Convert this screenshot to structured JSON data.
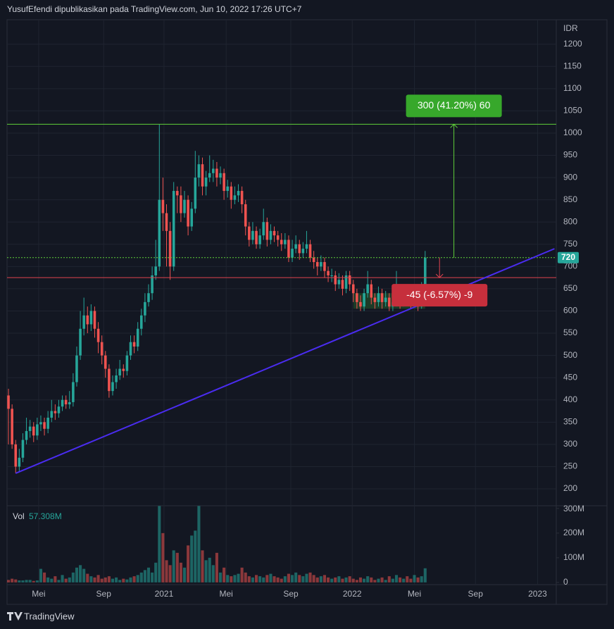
{
  "header": "YusufEfendi dipublikasikan pada TradingView.com, Jun 10, 2022 17:26 UTC+7",
  "footer": "TradingView",
  "chart_data": {
    "type": "candlestick",
    "y_unit": "IDR",
    "up_color": "#26a69a",
    "down_color": "#ef5350",
    "xlim": [
      -0.4,
      152.5
    ],
    "xticks": [
      {
        "value": 8.4,
        "label": "Mei"
      },
      {
        "value": 26.5,
        "label": "Sep"
      },
      {
        "value": 43.3,
        "label": "2021"
      },
      {
        "value": 60.6,
        "label": "Mei"
      },
      {
        "value": 78.6,
        "label": "Sep"
      },
      {
        "value": 95.7,
        "label": "2022"
      },
      {
        "value": 113,
        "label": "Mei"
      },
      {
        "value": 130,
        "label": "Sep"
      },
      {
        "value": 147.3,
        "label": "2023"
      }
    ],
    "ylim": [
      162,
      1255
    ],
    "yticks": [
      200,
      250,
      300,
      350,
      400,
      450,
      500,
      550,
      600,
      650,
      700,
      750,
      800,
      850,
      900,
      950,
      1000,
      1050,
      1100,
      1150,
      1200
    ],
    "open": [
      410,
      380,
      300,
      250,
      270,
      310,
      330,
      340,
      320,
      345,
      350,
      335,
      360,
      375,
      370,
      385,
      400,
      390,
      395,
      440,
      500,
      560,
      590,
      570,
      600,
      560,
      530,
      500,
      470,
      420,
      440,
      455,
      470,
      465,
      500,
      530,
      520,
      560,
      590,
      620,
      640,
      680,
      700,
      850,
      820,
      780,
      700,
      870,
      860,
      820,
      850,
      790,
      830,
      900,
      930,
      880,
      900,
      910,
      920,
      900,
      910,
      870,
      880,
      850,
      860,
      870,
      840,
      790,
      760,
      780,
      750,
      770,
      800,
      760,
      780,
      770,
      760,
      750,
      760,
      720,
      740,
      750,
      730,
      740,
      750,
      720,
      710,
      700,
      710,
      690,
      680,
      680,
      660,
      670,
      650,
      680,
      660,
      640,
      620,
      610,
      640,
      660,
      630,
      620,
      640,
      620,
      630,
      610,
      620,
      630,
      620,
      640,
      630,
      620,
      630,
      610,
      650
    ],
    "high": [
      425,
      390,
      310,
      290,
      325,
      360,
      355,
      350,
      360,
      365,
      360,
      375,
      400,
      390,
      400,
      410,
      410,
      420,
      460,
      520,
      600,
      630,
      610,
      615,
      610,
      575,
      545,
      510,
      480,
      455,
      470,
      490,
      480,
      510,
      545,
      545,
      575,
      605,
      640,
      660,
      700,
      760,
      1020,
      900,
      840,
      800,
      890,
      880,
      880,
      870,
      860,
      845,
      960,
      950,
      945,
      915,
      950,
      940,
      935,
      925,
      920,
      895,
      890,
      880,
      885,
      880,
      850,
      800,
      800,
      790,
      785,
      830,
      810,
      795,
      790,
      780,
      775,
      775,
      770,
      760,
      770,
      760,
      755,
      780,
      760,
      735,
      720,
      725,
      720,
      700,
      695,
      690,
      685,
      680,
      690,
      690,
      670,
      650,
      635,
      650,
      690,
      670,
      640,
      655,
      650,
      645,
      640,
      635,
      690,
      640,
      660,
      650,
      640,
      645,
      640,
      665,
      735
    ],
    "low": [
      300,
      290,
      235,
      240,
      260,
      300,
      315,
      305,
      310,
      330,
      320,
      325,
      350,
      355,
      360,
      375,
      380,
      380,
      385,
      430,
      490,
      545,
      550,
      555,
      540,
      505,
      480,
      450,
      405,
      410,
      425,
      445,
      450,
      455,
      490,
      505,
      510,
      545,
      575,
      610,
      625,
      670,
      690,
      780,
      700,
      670,
      690,
      820,
      800,
      810,
      770,
      780,
      820,
      880,
      860,
      860,
      890,
      890,
      880,
      885,
      850,
      855,
      830,
      840,
      845,
      820,
      770,
      745,
      750,
      740,
      740,
      760,
      745,
      750,
      755,
      745,
      735,
      740,
      710,
      710,
      730,
      715,
      720,
      730,
      710,
      695,
      680,
      690,
      675,
      665,
      665,
      645,
      650,
      635,
      640,
      645,
      620,
      605,
      600,
      600,
      630,
      615,
      605,
      610,
      605,
      610,
      600,
      600,
      610,
      605,
      610,
      615,
      605,
      610,
      600,
      605,
      640
    ],
    "close": [
      380,
      300,
      250,
      270,
      310,
      330,
      340,
      320,
      345,
      350,
      335,
      360,
      375,
      370,
      385,
      400,
      390,
      395,
      440,
      500,
      560,
      590,
      570,
      600,
      560,
      530,
      500,
      470,
      420,
      440,
      455,
      470,
      465,
      500,
      530,
      520,
      560,
      590,
      620,
      640,
      680,
      700,
      850,
      820,
      780,
      700,
      870,
      860,
      820,
      850,
      790,
      830,
      900,
      930,
      880,
      900,
      910,
      920,
      900,
      910,
      870,
      880,
      850,
      860,
      870,
      840,
      790,
      760,
      780,
      750,
      770,
      800,
      760,
      780,
      770,
      760,
      750,
      760,
      720,
      740,
      750,
      730,
      740,
      750,
      720,
      710,
      700,
      710,
      690,
      680,
      680,
      660,
      670,
      650,
      680,
      660,
      640,
      620,
      610,
      640,
      660,
      630,
      620,
      640,
      620,
      630,
      610,
      620,
      630,
      620,
      640,
      630,
      620,
      630,
      610,
      650,
      720
    ],
    "volume_title": "Vol",
    "volume_last_label": "57.308M",
    "volume": [
      10,
      15,
      12,
      8,
      8,
      10,
      10,
      6,
      8,
      55,
      40,
      20,
      15,
      25,
      10,
      30,
      15,
      20,
      40,
      60,
      70,
      55,
      35,
      25,
      20,
      30,
      15,
      20,
      25,
      15,
      20,
      10,
      15,
      12,
      20,
      25,
      30,
      40,
      50,
      60,
      40,
      80,
      310,
      200,
      90,
      70,
      130,
      120,
      80,
      60,
      150,
      190,
      210,
      310,
      130,
      90,
      100,
      70,
      120,
      40,
      60,
      30,
      25,
      30,
      35,
      60,
      40,
      25,
      20,
      30,
      25,
      20,
      30,
      35,
      25,
      20,
      15,
      25,
      35,
      30,
      40,
      30,
      25,
      35,
      40,
      30,
      20,
      25,
      30,
      20,
      15,
      20,
      25,
      15,
      20,
      25,
      15,
      10,
      20,
      15,
      25,
      20,
      10,
      15,
      20,
      10,
      25,
      15,
      30,
      20,
      15,
      25,
      15,
      30,
      20,
      25,
      57.308
    ],
    "vlim": [
      -9,
      311
    ],
    "vticks": [
      0,
      {
        "value": 100,
        "label": "100M"
      },
      {
        "value": 200,
        "label": "200M"
      },
      {
        "value": 300,
        "label": "300M"
      }
    ],
    "last_price": 720,
    "levels": [
      {
        "value": 1020,
        "color": "#5fcf3a",
        "dash": false
      },
      {
        "value": 720,
        "color": "#5fcf3a",
        "dash": true
      },
      {
        "value": 675,
        "color": "#e0434f",
        "dash": false
      }
    ],
    "trendline": {
      "x": [
        2,
        152
      ],
      "y": [
        235,
        740
      ],
      "color": "#4a2cf0"
    },
    "range_box": {
      "x": [
        96,
        116
      ],
      "y": [
        605,
        640
      ],
      "color": "#2e7d32"
    },
    "measures": [
      {
        "label": "300 (41.20%) 60",
        "x": 124,
        "from": 720,
        "to": 1020,
        "color": "#37a82b"
      },
      {
        "label": "-45 (-6.57%) -9",
        "x": 120,
        "from": 720,
        "to": 675,
        "color": "#c62f3c"
      }
    ]
  }
}
